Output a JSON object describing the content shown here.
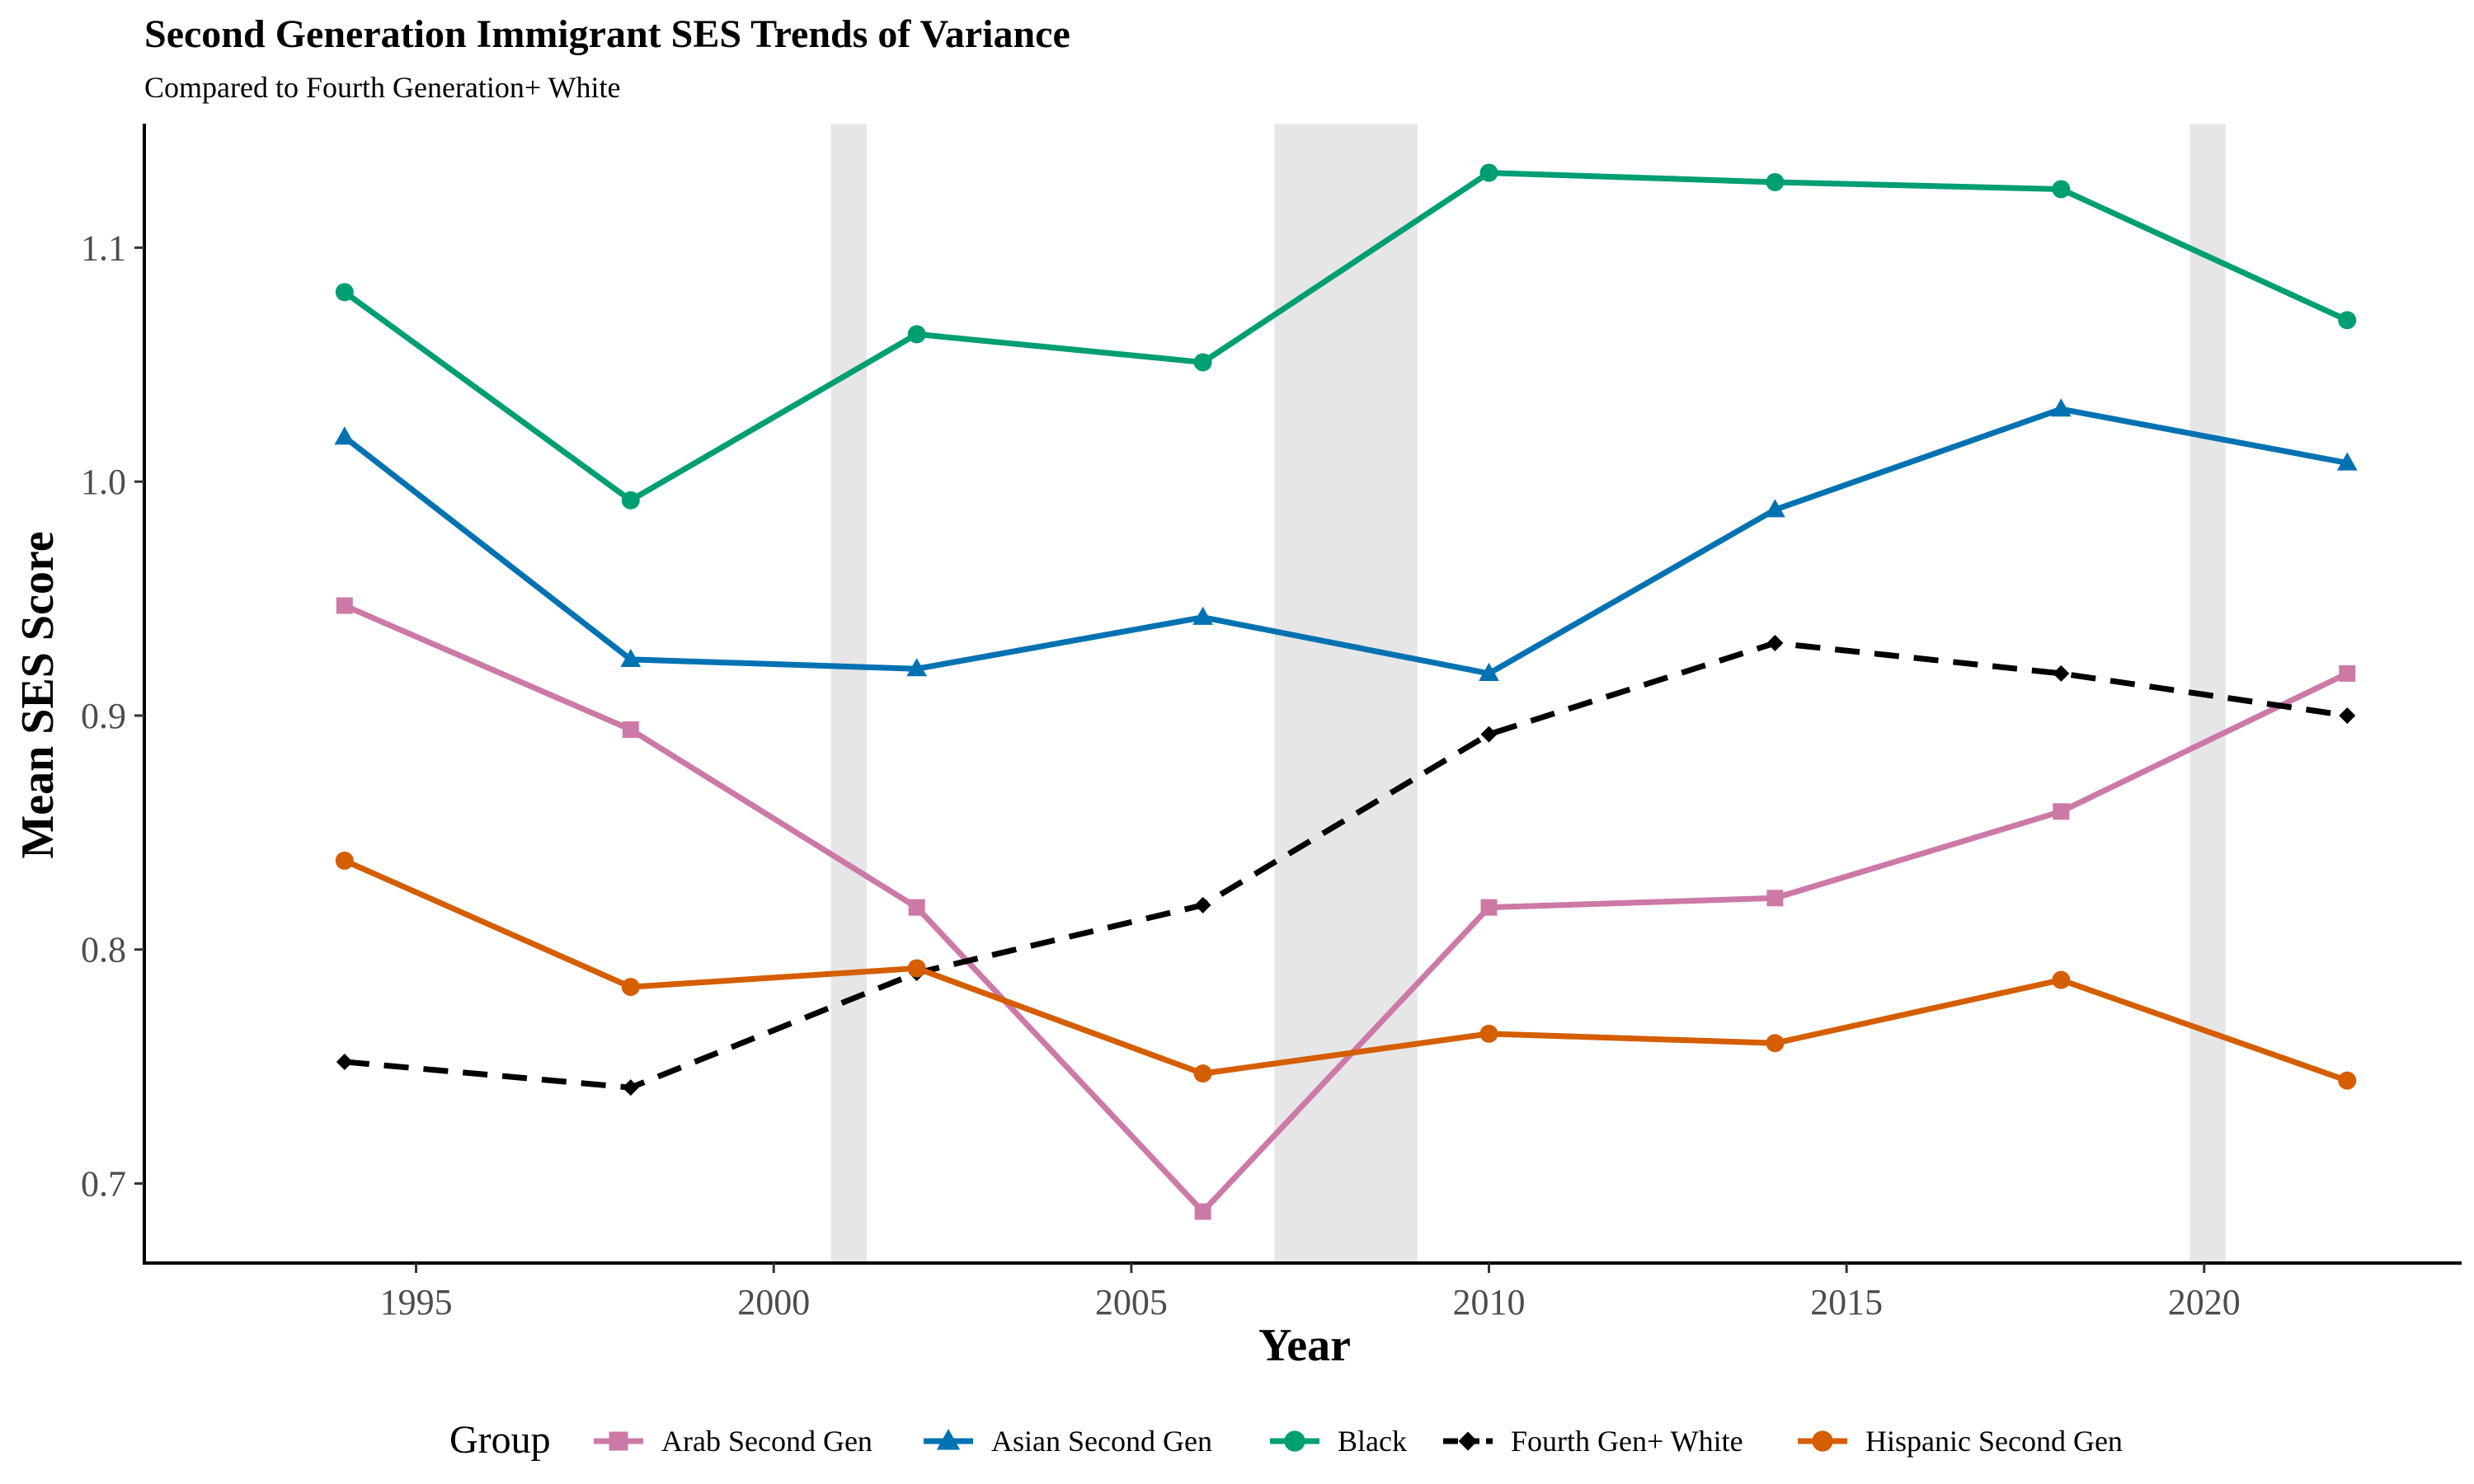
{
  "chart_data": {
    "type": "line",
    "title": "Second Generation Immigrant SES Trends of Variance",
    "subtitle": "Compared to Fourth Generation+ White",
    "xlabel": "Year",
    "ylabel": "Mean SES Score",
    "xlim": [
      1991.2,
      2023.6
    ],
    "ylim": [
      0.666,
      1.153
    ],
    "x_ticks": [
      1995,
      2000,
      2005,
      2010,
      2015,
      2020
    ],
    "y_ticks": [
      0.7,
      0.8,
      0.9,
      1.0,
      1.1
    ],
    "y_tick_labels": [
      "0.7",
      "0.8",
      "0.9",
      "1.0",
      "1.1"
    ],
    "grid": false,
    "legend_position": "bottom",
    "legend_title": "Group",
    "shaded_periods": [
      {
        "start": 2000.8,
        "end": 2001.3
      },
      {
        "start": 2007.0,
        "end": 2009.0
      },
      {
        "start": 2019.8,
        "end": 2020.3
      }
    ],
    "x": [
      1994,
      1998,
      2002,
      2006,
      2010,
      2014,
      2018,
      2022
    ],
    "series": [
      {
        "name": "Arab Second Gen",
        "color": "#CC79A7",
        "marker": "square",
        "dash": "solid",
        "values": [
          0.947,
          0.894,
          0.818,
          0.688,
          0.818,
          0.822,
          0.859,
          0.918
        ]
      },
      {
        "name": "Asian Second Gen",
        "color": "#0072B2",
        "marker": "triangle",
        "dash": "solid",
        "values": [
          1.019,
          0.924,
          0.92,
          0.942,
          0.918,
          0.988,
          1.031,
          1.008
        ]
      },
      {
        "name": "Black",
        "color": "#009E73",
        "marker": "circle",
        "dash": "solid",
        "values": [
          1.081,
          0.992,
          1.063,
          1.051,
          1.132,
          1.128,
          1.125,
          1.069
        ]
      },
      {
        "name": "Fourth Gen+ White",
        "color": "#000000",
        "marker": "diamond",
        "dash": "dashed",
        "values": [
          0.752,
          0.741,
          0.79,
          0.819,
          0.892,
          0.931,
          0.918,
          0.9
        ]
      },
      {
        "name": "Hispanic Second Gen",
        "color": "#D55E00",
        "marker": "circle",
        "dash": "solid",
        "values": [
          0.838,
          0.784,
          0.792,
          0.747,
          0.764,
          0.76,
          0.787,
          0.744
        ]
      }
    ]
  }
}
